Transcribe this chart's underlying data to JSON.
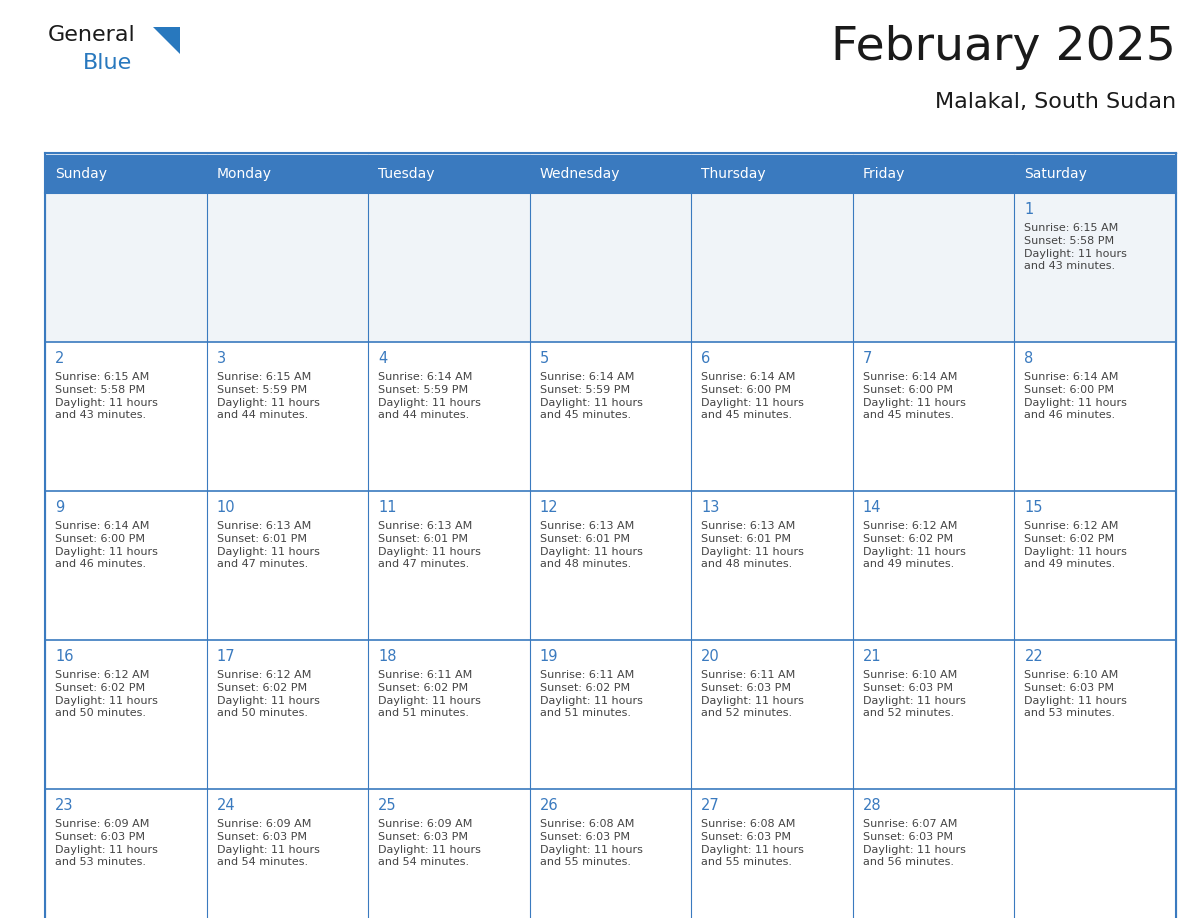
{
  "title": "February 2025",
  "subtitle": "Malakal, South Sudan",
  "days_of_week": [
    "Sunday",
    "Monday",
    "Tuesday",
    "Wednesday",
    "Thursday",
    "Friday",
    "Saturday"
  ],
  "header_color": "#3a7abf",
  "header_text_color": "#ffffff",
  "cell_bg_even": "#f0f4f8",
  "cell_bg_odd": "#ffffff",
  "border_color": "#3a7abf",
  "day_number_color": "#3a7abf",
  "info_text_color": "#444444",
  "title_color": "#1a1a1a",
  "subtitle_color": "#1a1a1a",
  "logo_black_color": "#1a1a1a",
  "logo_blue_color": "#2878be",
  "calendar_data": [
    [
      null,
      null,
      null,
      null,
      null,
      null,
      {
        "day": 1,
        "sunrise": "6:15 AM",
        "sunset": "5:58 PM",
        "daylight": "11 hours and 43 minutes."
      }
    ],
    [
      {
        "day": 2,
        "sunrise": "6:15 AM",
        "sunset": "5:58 PM",
        "daylight": "11 hours and 43 minutes."
      },
      {
        "day": 3,
        "sunrise": "6:15 AM",
        "sunset": "5:59 PM",
        "daylight": "11 hours and 44 minutes."
      },
      {
        "day": 4,
        "sunrise": "6:14 AM",
        "sunset": "5:59 PM",
        "daylight": "11 hours and 44 minutes."
      },
      {
        "day": 5,
        "sunrise": "6:14 AM",
        "sunset": "5:59 PM",
        "daylight": "11 hours and 45 minutes."
      },
      {
        "day": 6,
        "sunrise": "6:14 AM",
        "sunset": "6:00 PM",
        "daylight": "11 hours and 45 minutes."
      },
      {
        "day": 7,
        "sunrise": "6:14 AM",
        "sunset": "6:00 PM",
        "daylight": "11 hours and 45 minutes."
      },
      {
        "day": 8,
        "sunrise": "6:14 AM",
        "sunset": "6:00 PM",
        "daylight": "11 hours and 46 minutes."
      }
    ],
    [
      {
        "day": 9,
        "sunrise": "6:14 AM",
        "sunset": "6:00 PM",
        "daylight": "11 hours and 46 minutes."
      },
      {
        "day": 10,
        "sunrise": "6:13 AM",
        "sunset": "6:01 PM",
        "daylight": "11 hours and 47 minutes."
      },
      {
        "day": 11,
        "sunrise": "6:13 AM",
        "sunset": "6:01 PM",
        "daylight": "11 hours and 47 minutes."
      },
      {
        "day": 12,
        "sunrise": "6:13 AM",
        "sunset": "6:01 PM",
        "daylight": "11 hours and 48 minutes."
      },
      {
        "day": 13,
        "sunrise": "6:13 AM",
        "sunset": "6:01 PM",
        "daylight": "11 hours and 48 minutes."
      },
      {
        "day": 14,
        "sunrise": "6:12 AM",
        "sunset": "6:02 PM",
        "daylight": "11 hours and 49 minutes."
      },
      {
        "day": 15,
        "sunrise": "6:12 AM",
        "sunset": "6:02 PM",
        "daylight": "11 hours and 49 minutes."
      }
    ],
    [
      {
        "day": 16,
        "sunrise": "6:12 AM",
        "sunset": "6:02 PM",
        "daylight": "11 hours and 50 minutes."
      },
      {
        "day": 17,
        "sunrise": "6:12 AM",
        "sunset": "6:02 PM",
        "daylight": "11 hours and 50 minutes."
      },
      {
        "day": 18,
        "sunrise": "6:11 AM",
        "sunset": "6:02 PM",
        "daylight": "11 hours and 51 minutes."
      },
      {
        "day": 19,
        "sunrise": "6:11 AM",
        "sunset": "6:02 PM",
        "daylight": "11 hours and 51 minutes."
      },
      {
        "day": 20,
        "sunrise": "6:11 AM",
        "sunset": "6:03 PM",
        "daylight": "11 hours and 52 minutes."
      },
      {
        "day": 21,
        "sunrise": "6:10 AM",
        "sunset": "6:03 PM",
        "daylight": "11 hours and 52 minutes."
      },
      {
        "day": 22,
        "sunrise": "6:10 AM",
        "sunset": "6:03 PM",
        "daylight": "11 hours and 53 minutes."
      }
    ],
    [
      {
        "day": 23,
        "sunrise": "6:09 AM",
        "sunset": "6:03 PM",
        "daylight": "11 hours and 53 minutes."
      },
      {
        "day": 24,
        "sunrise": "6:09 AM",
        "sunset": "6:03 PM",
        "daylight": "11 hours and 54 minutes."
      },
      {
        "day": 25,
        "sunrise": "6:09 AM",
        "sunset": "6:03 PM",
        "daylight": "11 hours and 54 minutes."
      },
      {
        "day": 26,
        "sunrise": "6:08 AM",
        "sunset": "6:03 PM",
        "daylight": "11 hours and 55 minutes."
      },
      {
        "day": 27,
        "sunrise": "6:08 AM",
        "sunset": "6:03 PM",
        "daylight": "11 hours and 55 minutes."
      },
      {
        "day": 28,
        "sunrise": "6:07 AM",
        "sunset": "6:03 PM",
        "daylight": "11 hours and 56 minutes."
      },
      null
    ]
  ],
  "fig_width": 11.88,
  "fig_height": 9.18
}
